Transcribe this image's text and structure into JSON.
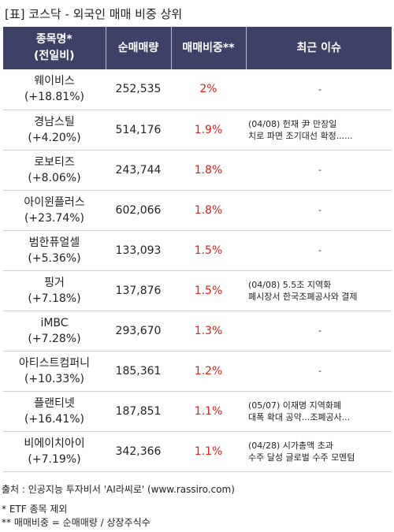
{
  "title": "[표] 코스닥 - 외국인 매매 비중 상위",
  "headers": {
    "name_line1": "종목명*",
    "name_line2": "(전일비)",
    "volume": "순매매량",
    "ratio": "매매비중**",
    "issue": "최근 이슈"
  },
  "rows": [
    {
      "name": "웨이비스",
      "change": "(+18.81%)",
      "volume": "252,535",
      "ratio": "2%",
      "issue1": "-",
      "issue2": ""
    },
    {
      "name": "경남스틸",
      "change": "(+4.20%)",
      "volume": "514,176",
      "ratio": "1.9%",
      "issue1": "(04/08) 헌재 尹 만장일",
      "issue2": "치로 파면 조기대선 확정......"
    },
    {
      "name": "로보티즈",
      "change": "(+8.06%)",
      "volume": "243,744",
      "ratio": "1.8%",
      "issue1": "-",
      "issue2": ""
    },
    {
      "name": "아이윈플러스",
      "change": "(+23.74%)",
      "volume": "602,066",
      "ratio": "1.8%",
      "issue1": "-",
      "issue2": ""
    },
    {
      "name": "범한퓨얼셀",
      "change": "(+5.36%)",
      "volume": "133,093",
      "ratio": "1.5%",
      "issue1": "-",
      "issue2": ""
    },
    {
      "name": "핑거",
      "change": "(+7.18%)",
      "volume": "137,876",
      "ratio": "1.5%",
      "issue1": "(04/08) 5.5조 지역화",
      "issue2": "폐시장서 한국조폐공사와 결제"
    },
    {
      "name": "iMBC",
      "change": "(+7.28%)",
      "volume": "293,670",
      "ratio": "1.3%",
      "issue1": "-",
      "issue2": ""
    },
    {
      "name": "아티스트컴퍼니",
      "change": "(+10.33%)",
      "volume": "185,361",
      "ratio": "1.2%",
      "issue1": "-",
      "issue2": ""
    },
    {
      "name": "플랜티넷",
      "change": "(+16.41%)",
      "volume": "187,851",
      "ratio": "1.1%",
      "issue1": "(05/07) 이재명 지역화폐",
      "issue2": "대폭 확대 공약...조폐공사..."
    },
    {
      "name": "비에이치아이",
      "change": "(+7.19%)",
      "volume": "342,366",
      "ratio": "1.1%",
      "issue1": "(04/28) 시가총액 초과",
      "issue2": "수주 달성 글로벌 수주 모멘텀"
    }
  ],
  "source": "출처 : 인공지능 투자비서 'AI라씨로' (www.rassiro.com)",
  "note1": "* ETF 종목 제외",
  "note2": "** 매매비중 = 순매매량 / 상장주식수"
}
